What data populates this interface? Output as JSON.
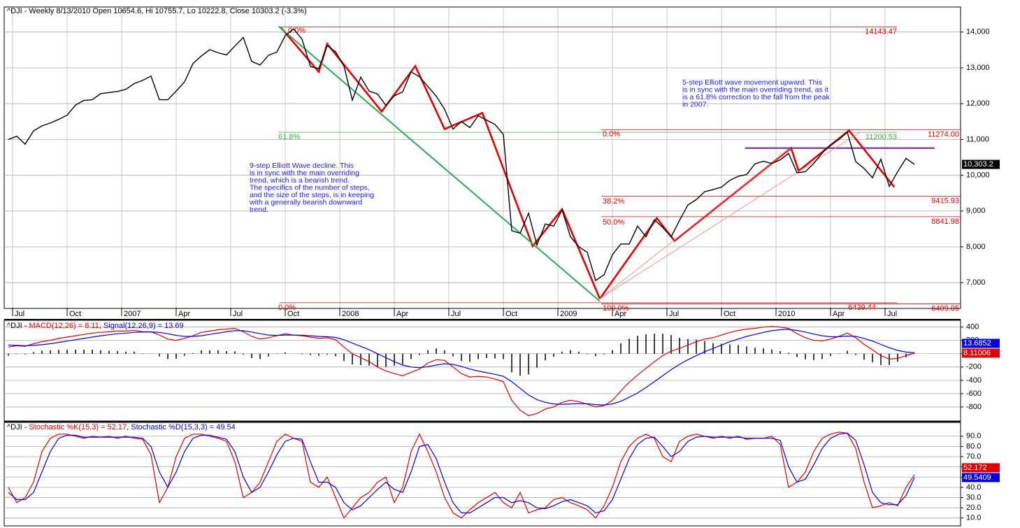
{
  "chart_data": [
    {
      "type": "line",
      "title": "^DJI - Weekly 8/13/2010 Open 10654.6, Hi 10755.7, Lo 10222.8, Close 10303.2 (-3.3%)",
      "xlim": [
        -0.5,
        113.5
      ],
      "xticks": [
        {
          "value": 0.5,
          "label": "Jul"
        },
        {
          "value": 7,
          "label": "Oct"
        },
        {
          "value": 13.5,
          "label": "2007"
        },
        {
          "value": 20,
          "label": "Apr"
        },
        {
          "value": 26.5,
          "label": "Jul"
        },
        {
          "value": 33,
          "label": "Oct"
        },
        {
          "value": 39.5,
          "label": "2008"
        },
        {
          "value": 46,
          "label": "Apr"
        },
        {
          "value": 52.5,
          "label": "Jul"
        },
        {
          "value": 59,
          "label": "Oct"
        },
        {
          "value": 65.5,
          "label": "2009"
        },
        {
          "value": 72,
          "label": "Apr"
        },
        {
          "value": 78.5,
          "label": "Jul"
        },
        {
          "value": 85,
          "label": "Oct"
        },
        {
          "value": 91.5,
          "label": "2010"
        },
        {
          "value": 98,
          "label": "Apr"
        },
        {
          "value": 104.5,
          "label": "Jul"
        }
      ],
      "ylim": [
        6300,
        14700
      ],
      "yticks": [
        {
          "value": 7000,
          "label": "7,000"
        },
        {
          "value": 8000,
          "label": "8,000"
        },
        {
          "value": 9000,
          "label": "9,000"
        },
        {
          "value": 10000,
          "label": "10,000"
        },
        {
          "value": 11000,
          "label": "11,000"
        },
        {
          "value": 12000,
          "label": "12,000"
        },
        {
          "value": 13000,
          "label": "13,000"
        },
        {
          "value": 14000,
          "label": "14,000"
        }
      ],
      "grid": true,
      "series": [
        {
          "color": "#000000",
          "last_label": "10,303.2",
          "values": [
            11000,
            11090,
            10870,
            11240,
            11380,
            11460,
            11560,
            11680,
            11960,
            12090,
            12110,
            12280,
            12310,
            12340,
            12400,
            12560,
            12650,
            12770,
            12110,
            12110,
            12350,
            12610,
            13120,
            13330,
            13510,
            13420,
            13360,
            13610,
            13850,
            13180,
            13080,
            13350,
            13440,
            13900,
            14090,
            13800,
            13040,
            12980,
            13620,
            13450,
            13050,
            12100,
            12740,
            12350,
            12270,
            11950,
            12220,
            12330,
            12890,
            12750,
            12480,
            12210,
            11840,
            11290,
            11500,
            11330,
            11660,
            11540,
            11420,
            11140,
            8450,
            8380,
            8940,
            8050,
            8640,
            8580,
            9030,
            8280,
            8000,
            7850,
            7060,
            7220,
            7780,
            8080,
            8080,
            8580,
            8280,
            8760,
            8540,
            8280,
            8740,
            9170,
            9320,
            9540,
            9600,
            9670,
            9860,
            9970,
            10020,
            10320,
            10390,
            10330,
            10430,
            10610,
            10070,
            10100,
            10330,
            10620,
            10850,
            11000,
            11200,
            10380,
            10190,
            9930,
            10450,
            9690,
            10100,
            10470,
            10303.2
          ]
        }
      ],
      "lines": [
        {
          "color": "#e00000",
          "style": "heavy",
          "x": [
            32.5,
            37,
            38,
            44.5,
            48.5,
            52,
            56.5,
            62.5,
            66,
            70.5
          ],
          "y": [
            14120,
            12890,
            13670,
            11780,
            13050,
            11290,
            11740,
            8020,
            9050,
            6550
          ]
        },
        {
          "color": "#e00000",
          "style": "heavy",
          "x": [
            70.5,
            77.3,
            79.4,
            93.3,
            94.2,
            100.2,
            105.6
          ],
          "y": [
            6550,
            8800,
            8170,
            10760,
            10120,
            11250,
            9670
          ]
        },
        {
          "color": "#2fa85a",
          "style": "medium",
          "x": [
            32.2,
            70.5
          ],
          "y": [
            14160,
            6480
          ]
        },
        {
          "color": "#7a1f8c",
          "style": "medium",
          "x": [
            87.8,
            110.4
          ],
          "y": [
            10760,
            10760
          ]
        },
        {
          "color": "#f08080",
          "style": "thin",
          "x": [
            70.5,
            93.3
          ],
          "y": [
            6550,
            10760
          ]
        },
        {
          "color": "#f08080",
          "style": "thin",
          "x": [
            70.5,
            101.5
          ],
          "y": [
            6550,
            11200
          ]
        }
      ],
      "levels": [
        {
          "value": 14143.47,
          "color": "#e00000"
        },
        {
          "value": 11200.53,
          "color": "#3cb043"
        },
        {
          "value": 11274,
          "label": "11274.00",
          "color": "#e00000"
        },
        {
          "value": 9415.93,
          "color": "#e00000"
        },
        {
          "value": 8841.98,
          "color": "#e00000"
        },
        {
          "value": 6439.44,
          "color": "#e00000"
        },
        {
          "value": 6409.05,
          "color": "#e00000"
        }
      ],
      "level_percents": [
        {
          "text": "0.0%",
          "color": "#e00000"
        },
        {
          "text": "61.8%",
          "color": "#3cb043"
        },
        {
          "text": "0.0%",
          "color": "#e00000"
        },
        {
          "text": "100.0%",
          "color": "#e00000"
        },
        {
          "text": "0.0%",
          "color": "#e00000"
        },
        {
          "text": "38.2%",
          "color": "#e00000"
        },
        {
          "text": "50.0%",
          "color": "#e00000"
        }
      ],
      "notes": [
        {
          "color": "#1a1aff",
          "lines": [
            "9-step Elliott Wave decline.  This",
            "is in sync with the main overriding",
            "trend, which is a bearish trend.",
            "The specifics of the number of steps,",
            "and the size of the steps, is in keeping",
            "with a generally bearish downward",
            "trend."
          ]
        },
        {
          "color": "#1a1aff",
          "lines": [
            "5-step Elliott wave movement upward.  This",
            "is in sync with the main overriding trend, as it",
            "is a 61.8% correction to the fall from the peak",
            "in 2007."
          ]
        }
      ]
    },
    {
      "type": "line",
      "title": [
        "^DJI - ",
        "MACD(12,26) = 8.11",
        ", ",
        "Signal(12,26,9) = 13.69"
      ],
      "title_colors": [
        "#000000",
        "#e00000",
        "#000000",
        "#0000e0"
      ],
      "xlim": [
        -0.5,
        113.5
      ],
      "ylim": [
        -990,
        460
      ],
      "yticks": [
        -800,
        -600,
        -400,
        -200,
        0,
        200,
        400
      ],
      "grid": true,
      "series": [
        {
          "color": "#000000",
          "style": "bar",
          "values": [
            -30,
            -5,
            -10,
            25,
            45,
            50,
            60,
            60,
            60,
            60,
            60,
            50,
            45,
            40,
            30,
            30,
            5,
            2,
            -40,
            -80,
            -75,
            -30,
            10,
            50,
            50,
            50,
            40,
            35,
            -15,
            -65,
            -80,
            -40,
            -5,
            20,
            0,
            -8,
            -20,
            -30,
            -15,
            -35,
            -110,
            -160,
            -170,
            -180,
            -200,
            -200,
            -180,
            -160,
            -80,
            -20,
            55,
            80,
            50,
            -40,
            -110,
            -120,
            -80,
            -65,
            -70,
            -80,
            -280,
            -330,
            -310,
            -210,
            -100,
            -45,
            30,
            55,
            30,
            -8,
            -35,
            -10,
            55,
            155,
            225,
            270,
            290,
            300,
            300,
            280,
            240,
            220,
            210,
            190,
            160,
            150,
            140,
            130,
            110,
            90,
            80,
            65,
            40,
            15,
            -50,
            -85,
            -95,
            -80,
            -35,
            5,
            45,
            -20,
            -90,
            -130,
            -170,
            -170,
            -120,
            -55,
            -5.57
          ]
        },
        {
          "color": "#e00000",
          "last_label": "8.11006",
          "values": [
            100,
            120,
            110,
            150,
            180,
            200,
            230,
            250,
            270,
            290,
            310,
            320,
            330,
            340,
            340,
            350,
            330,
            330,
            280,
            220,
            200,
            230,
            270,
            320,
            340,
            360,
            370,
            380,
            330,
            260,
            220,
            240,
            270,
            300,
            280,
            270,
            250,
            230,
            240,
            210,
            100,
            0,
            -60,
            -120,
            -200,
            -260,
            -300,
            -330,
            -280,
            -230,
            -140,
            -90,
            -100,
            -200,
            -300,
            -350,
            -340,
            -350,
            -380,
            -420,
            -700,
            -850,
            -930,
            -900,
            -830,
            -800,
            -730,
            -700,
            -720,
            -760,
            -800,
            -780,
            -700,
            -560,
            -430,
            -320,
            -220,
            -120,
            -30,
            40,
            80,
            130,
            180,
            220,
            240,
            280,
            320,
            350,
            370,
            380,
            400,
            410,
            400,
            380,
            300,
            240,
            200,
            190,
            220,
            260,
            310,
            240,
            140,
            60,
            -30,
            -80,
            -70,
            -30,
            8.11006
          ]
        },
        {
          "color": "#0000e0",
          "last_label": "13.6852",
          "values": [
            130,
            125,
            120,
            125,
            135,
            150,
            170,
            190,
            210,
            230,
            250,
            270,
            285,
            300,
            310,
            320,
            325,
            328,
            320,
            300,
            275,
            260,
            260,
            270,
            290,
            310,
            330,
            345,
            345,
            325,
            300,
            280,
            275,
            280,
            280,
            278,
            270,
            260,
            255,
            245,
            210,
            160,
            110,
            60,
            0,
            -60,
            -120,
            -170,
            -200,
            -210,
            -195,
            -170,
            -150,
            -160,
            -190,
            -230,
            -260,
            -285,
            -310,
            -340,
            -420,
            -520,
            -620,
            -690,
            -730,
            -755,
            -760,
            -755,
            -750,
            -752,
            -765,
            -770,
            -755,
            -715,
            -655,
            -590,
            -510,
            -420,
            -330,
            -240,
            -160,
            -90,
            -30,
            30,
            80,
            130,
            180,
            220,
            260,
            290,
            320,
            345,
            360,
            365,
            350,
            325,
            295,
            270,
            255,
            255,
            265,
            260,
            230,
            190,
            140,
            90,
            50,
            25,
            13.6852
          ]
        }
      ]
    },
    {
      "type": "line",
      "title": [
        "^DJI - ",
        "Stochastic %K(15,3) = 52.17",
        ", ",
        "Stochastic %D(15,3,3) = 49.54"
      ],
      "title_colors": [
        "#000000",
        "#e00000",
        "#000000",
        "#0000e0"
      ],
      "xlim": [
        -0.5,
        113.5
      ],
      "ylim": [
        5,
        96
      ],
      "yticks": [
        {
          "value": 10,
          "label": "10.0"
        },
        {
          "value": 20,
          "label": "20.0"
        },
        {
          "value": 30,
          "label": "30.0"
        },
        {
          "value": 40,
          "label": "40.0"
        },
        {
          "value": 50,
          "label": "50.0"
        },
        {
          "value": 60,
          "label": "60.0"
        },
        {
          "value": 70,
          "label": "70.0"
        },
        {
          "value": 80,
          "label": "80.0"
        },
        {
          "value": 90,
          "label": "90.0"
        }
      ],
      "grid": true,
      "series": [
        {
          "color": "#e00000",
          "last_label": "52.172",
          "values": [
            40,
            25,
            30,
            45,
            75,
            88,
            92,
            92,
            90,
            88,
            90,
            89,
            90,
            88,
            90,
            88,
            87,
            72,
            25,
            40,
            70,
            88,
            92,
            92,
            90,
            88,
            85,
            65,
            30,
            35,
            45,
            65,
            85,
            92,
            88,
            85,
            45,
            40,
            50,
            30,
            10,
            20,
            30,
            35,
            45,
            50,
            25,
            40,
            75,
            92,
            75,
            55,
            30,
            15,
            10,
            18,
            25,
            30,
            35,
            25,
            20,
            35,
            15,
            18,
            20,
            28,
            30,
            25,
            22,
            18,
            10,
            22,
            40,
            65,
            80,
            88,
            92,
            88,
            70,
            65,
            85,
            90,
            92,
            90,
            88,
            90,
            88,
            90,
            87,
            88,
            88,
            90,
            82,
            40,
            45,
            55,
            75,
            88,
            92,
            94,
            93,
            78,
            45,
            20,
            22,
            25,
            22,
            40,
            52.172
          ]
        },
        {
          "color": "#0000e0",
          "last_label": "49.5409",
          "values": [
            35,
            28,
            28,
            35,
            55,
            75,
            88,
            91,
            91,
            89,
            89,
            89,
            89,
            89,
            89,
            89,
            88,
            80,
            55,
            40,
            55,
            75,
            88,
            91,
            91,
            89,
            87,
            75,
            50,
            35,
            40,
            55,
            72,
            85,
            88,
            87,
            65,
            45,
            45,
            40,
            25,
            18,
            22,
            30,
            38,
            45,
            38,
            35,
            55,
            80,
            82,
            68,
            45,
            25,
            15,
            15,
            20,
            25,
            30,
            30,
            25,
            27,
            25,
            20,
            19,
            22,
            26,
            28,
            25,
            22,
            15,
            17,
            28,
            48,
            68,
            82,
            88,
            89,
            80,
            70,
            75,
            85,
            89,
            90,
            89,
            89,
            89,
            89,
            88,
            88,
            88,
            88,
            86,
            60,
            45,
            48,
            62,
            78,
            88,
            92,
            93,
            86,
            62,
            35,
            25,
            23,
            23,
            32,
            49.5409
          ]
        }
      ]
    }
  ]
}
